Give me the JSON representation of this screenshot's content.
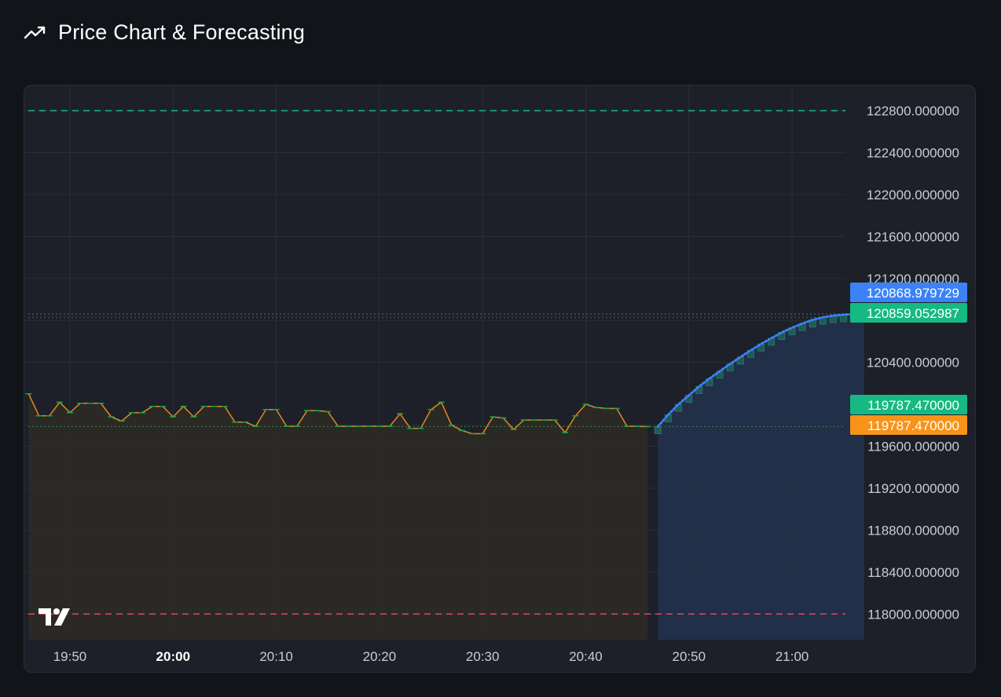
{
  "header": {
    "title": "Price Chart & Forecasting",
    "icon": "trending-up-icon"
  },
  "colors": {
    "background": "#111418",
    "panel": "#1d2028",
    "grid": "#2a2e37",
    "history_line": "#e08a1e",
    "history_marker": "#16a34a",
    "forecast_line": "#3b82f6",
    "upper_band": "#16b981",
    "lower_band": "#e0485a",
    "axis_text": "#c9ccd1"
  },
  "chart_data": {
    "type": "line",
    "title": "",
    "xlabel": "",
    "ylabel": "",
    "ylim": [
      117750,
      122850
    ],
    "grid": true,
    "legend": "none",
    "y_ticks": [
      "122800.000000",
      "122400.000000",
      "122000.000000",
      "121600.000000",
      "121200.000000",
      "120400.000000",
      "119600.000000",
      "119200.000000",
      "118800.000000",
      "118400.000000",
      "118000.000000"
    ],
    "y_tick_values": [
      122800,
      122400,
      122000,
      121600,
      121200,
      120400,
      119600,
      119200,
      118800,
      118400,
      118000
    ],
    "x_ticks": [
      "19:50",
      "20:00",
      "20:10",
      "20:20",
      "20:30",
      "20:40",
      "20:50",
      "21:00"
    ],
    "x_tick_minutes": [
      50,
      60,
      70,
      80,
      90,
      100,
      110,
      120
    ],
    "x_tick_bold": [
      "20:00"
    ],
    "x_units": "minutes after 19:00",
    "reference_lines": [
      {
        "value": 122800,
        "style": "dashed",
        "color": "#16b981"
      },
      {
        "value": 118000,
        "style": "dashed",
        "color": "#e0485a"
      }
    ],
    "series": [
      {
        "kind": "history",
        "x": [
          46,
          47,
          48,
          49,
          50,
          51,
          52,
          53,
          54,
          55,
          56,
          57,
          58,
          59,
          60,
          61,
          62,
          63,
          64,
          65,
          66,
          67,
          68,
          69,
          70,
          71,
          72,
          73,
          74,
          75,
          76,
          77,
          78,
          79,
          80,
          81,
          82,
          83,
          84,
          85,
          86,
          87,
          88,
          89,
          90,
          91,
          92,
          93,
          94,
          95,
          96,
          97,
          98,
          99,
          100,
          101,
          102,
          103,
          104,
          105,
          106
        ],
        "y": [
          120100,
          119890,
          119890,
          120020,
          119920,
          120010,
          120010,
          120010,
          119880,
          119840,
          119920,
          119920,
          119980,
          119980,
          119880,
          119980,
          119880,
          119980,
          119980,
          119980,
          119830,
          119830,
          119790,
          119950,
          119950,
          119790,
          119790,
          119940,
          119940,
          119930,
          119790,
          119790,
          119790,
          119790,
          119790,
          119790,
          119910,
          119770,
          119770,
          119950,
          120020,
          119800,
          119750,
          119720,
          119720,
          119880,
          119870,
          119760,
          119850,
          119850,
          119850,
          119850,
          119730,
          119890,
          120000,
          119970,
          119960,
          119960,
          119790,
          119790,
          119787.47
        ]
      },
      {
        "kind": "forecast",
        "x": [
          106,
          107,
          108,
          109,
          110,
          111,
          112,
          113,
          114,
          115,
          116,
          117,
          118,
          119,
          120,
          121,
          122,
          123,
          124,
          125,
          126
        ],
        "y": [
          119787.47,
          119900,
          120000,
          120085,
          120170,
          120245,
          120315,
          120385,
          120450,
          120515,
          120575,
          120630,
          120685,
          120730,
          120770,
          120805,
          120830,
          120845,
          120855,
          120860,
          120868.979729
        ]
      }
    ],
    "price_labels": [
      {
        "value": "120868.979729",
        "numeric": 120868.979729,
        "color": "#3b82f6"
      },
      {
        "value": "120859.052987",
        "numeric": 120859.052987,
        "color": "#16b981"
      },
      {
        "value": "119787.470000",
        "numeric": 119787.47,
        "color": "#16b981"
      },
      {
        "value": "119787.470000",
        "numeric": 119787.47,
        "color": "#f7931a"
      }
    ]
  }
}
